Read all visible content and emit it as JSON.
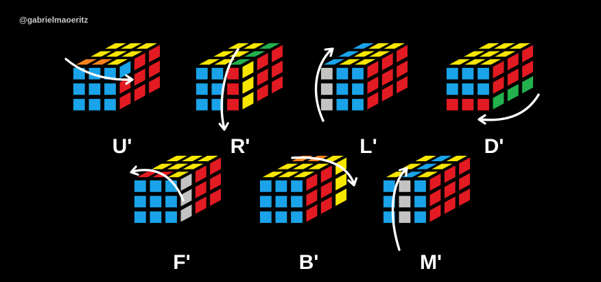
{
  "credit": "@gabrielmaoeritz",
  "colors": {
    "Y": "#f7e600",
    "B": "#1aa3e8",
    "R": "#e21a22",
    "O": "#f58220",
    "G": "#22b14c",
    "W": "#c3c3c3",
    "arrow": "#ffffff",
    "label": "#ffffff",
    "background": "#000000"
  },
  "moves": [
    {
      "name": "U'",
      "top": [
        [
          "Y",
          "Y",
          "Y"
        ],
        [
          "Y",
          "Y",
          "Y"
        ],
        [
          "O",
          "O",
          "Y"
        ]
      ],
      "left": [
        [
          "B",
          "B",
          "B"
        ],
        [
          "B",
          "B",
          "B"
        ],
        [
          "B",
          "B",
          "B"
        ]
      ],
      "right": [
        [
          "B",
          "R",
          "R"
        ],
        [
          "R",
          "R",
          "R"
        ],
        [
          "R",
          "R",
          "R"
        ]
      ],
      "arrow": "u-row"
    },
    {
      "name": "R'",
      "top": [
        [
          "Y",
          "Y",
          "G"
        ],
        [
          "Y",
          "Y",
          "G"
        ],
        [
          "Y",
          "Y",
          "G"
        ]
      ],
      "left": [
        [
          "B",
          "B",
          "R"
        ],
        [
          "B",
          "B",
          "R"
        ],
        [
          "B",
          "B",
          "R"
        ]
      ],
      "right": [
        [
          "Y",
          "R",
          "R"
        ],
        [
          "Y",
          "R",
          "R"
        ],
        [
          "Y",
          "R",
          "R"
        ]
      ],
      "arrow": "r-col"
    },
    {
      "name": "L'",
      "top": [
        [
          "B",
          "Y",
          "Y"
        ],
        [
          "B",
          "Y",
          "Y"
        ],
        [
          "B",
          "Y",
          "Y"
        ]
      ],
      "left": [
        [
          "W",
          "B",
          "B"
        ],
        [
          "W",
          "B",
          "B"
        ],
        [
          "W",
          "B",
          "B"
        ]
      ],
      "right": [
        [
          "R",
          "R",
          "R"
        ],
        [
          "R",
          "R",
          "R"
        ],
        [
          "R",
          "R",
          "R"
        ]
      ],
      "arrow": "l-col"
    },
    {
      "name": "D'",
      "top": [
        [
          "Y",
          "Y",
          "Y"
        ],
        [
          "Y",
          "Y",
          "Y"
        ],
        [
          "Y",
          "Y",
          "Y"
        ]
      ],
      "left": [
        [
          "B",
          "B",
          "B"
        ],
        [
          "B",
          "B",
          "B"
        ],
        [
          "R",
          "R",
          "R"
        ]
      ],
      "right": [
        [
          "R",
          "R",
          "R"
        ],
        [
          "R",
          "R",
          "R"
        ],
        [
          "G",
          "G",
          "G"
        ]
      ],
      "arrow": "d-row"
    },
    {
      "name": "F'",
      "top": [
        [
          "Y",
          "Y",
          "Y"
        ],
        [
          "Y",
          "Y",
          "Y"
        ],
        [
          "R",
          "R",
          "Y"
        ]
      ],
      "left": [
        [
          "B",
          "B",
          "B"
        ],
        [
          "B",
          "B",
          "B"
        ],
        [
          "B",
          "B",
          "B"
        ]
      ],
      "right": [
        [
          "W",
          "R",
          "R"
        ],
        [
          "W",
          "R",
          "R"
        ],
        [
          "W",
          "R",
          "R"
        ]
      ],
      "arrow": "f-front"
    },
    {
      "name": "B'",
      "top": [
        [
          "O",
          "O",
          "Y"
        ],
        [
          "Y",
          "Y",
          "Y"
        ],
        [
          "Y",
          "Y",
          "Y"
        ]
      ],
      "left": [
        [
          "B",
          "B",
          "B"
        ],
        [
          "B",
          "B",
          "B"
        ],
        [
          "B",
          "B",
          "B"
        ]
      ],
      "right": [
        [
          "R",
          "R",
          "Y"
        ],
        [
          "R",
          "R",
          "Y"
        ],
        [
          "R",
          "R",
          "Y"
        ]
      ],
      "arrow": "b-back"
    },
    {
      "name": "M'",
      "top": [
        [
          "Y",
          "B",
          "Y"
        ],
        [
          "Y",
          "B",
          "Y"
        ],
        [
          "Y",
          "B",
          "Y"
        ]
      ],
      "left": [
        [
          "B",
          "W",
          "B"
        ],
        [
          "B",
          "W",
          "B"
        ],
        [
          "B",
          "W",
          "B"
        ]
      ],
      "right": [
        [
          "R",
          "R",
          "R"
        ],
        [
          "R",
          "R",
          "R"
        ],
        [
          "R",
          "R",
          "R"
        ]
      ],
      "arrow": "m-col"
    }
  ]
}
